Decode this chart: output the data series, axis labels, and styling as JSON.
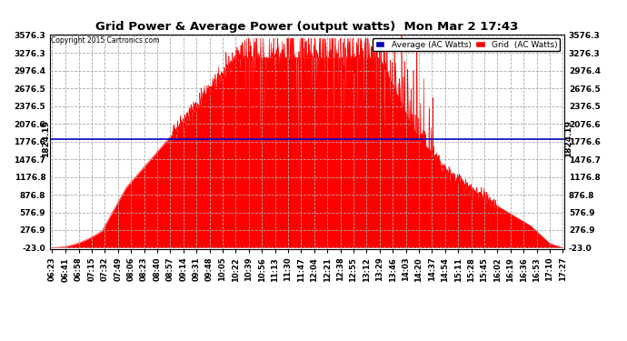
{
  "title": "Grid Power & Average Power (output watts)  Mon Mar 2 17:43",
  "copyright": "Copyright 2015 Cartronics.com",
  "legend_labels": [
    "Average (AC Watts)",
    "Grid  (AC Watts)"
  ],
  "legend_colors": [
    "#0000bb",
    "#ff0000"
  ],
  "avg_value": 1824.19,
  "ymin": -23.0,
  "ymax": 3576.3,
  "yticks": [
    3576.3,
    3276.3,
    2976.4,
    2676.5,
    2376.5,
    2076.6,
    1776.6,
    1476.7,
    1176.8,
    876.8,
    576.9,
    276.9,
    -23.0
  ],
  "bg_color": "#ffffff",
  "grid_color": "#aaaaaa",
  "fill_color": "#ff0000",
  "avg_line_color": "#0000cc",
  "x_times": [
    "06:23",
    "06:41",
    "06:58",
    "07:15",
    "07:32",
    "07:49",
    "08:06",
    "08:23",
    "08:40",
    "08:57",
    "09:14",
    "09:31",
    "09:48",
    "10:05",
    "10:22",
    "10:39",
    "10:56",
    "11:13",
    "11:30",
    "11:47",
    "12:04",
    "12:21",
    "12:38",
    "12:55",
    "13:12",
    "13:29",
    "13:46",
    "14:03",
    "14:20",
    "14:37",
    "14:54",
    "15:11",
    "15:28",
    "15:45",
    "16:02",
    "16:19",
    "16:36",
    "16:53",
    "17:10",
    "17:27"
  ],
  "figsize": [
    6.9,
    3.75
  ],
  "dpi": 100
}
